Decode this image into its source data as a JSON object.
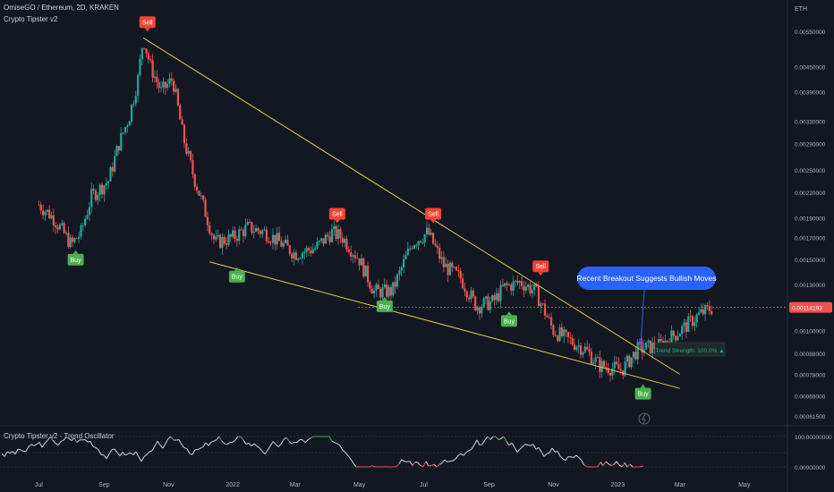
{
  "header": {
    "title": "OmiseGO / Ethereum, 2D, KRAKEN",
    "indicator": "Crypto Tipster v2",
    "currency": "ETH"
  },
  "oscillator": {
    "title": "Crypto Tipster v2 - Trend Oscillator",
    "axis_top": "100.00000000",
    "axis_bottom": "0.00000000"
  },
  "colors": {
    "background": "#131722",
    "up": "#26a69a",
    "down": "#ef5350",
    "trendline": "#e6c84a",
    "buy": "#4caf50",
    "sell": "#f44336",
    "callout": "#2962ff"
  },
  "chart_data": {
    "type": "candlestick",
    "symbol": "OmiseGO / Ethereum",
    "interval": "2D",
    "exchange": "KRAKEN",
    "y_scale": "log",
    "ylim": [
      0.0006,
      0.0057
    ],
    "y_ticks": [
      "0.00550000",
      "0.00450000",
      "0.00390000",
      "0.00330000",
      "0.00290000",
      "0.00250000",
      "0.00220000",
      "0.00190000",
      "0.00170000",
      "0.00150000",
      "0.00130000",
      "0.00100000",
      "0.00088000",
      "0.00078000",
      "0.00069000",
      "0.00061500"
    ],
    "x_ticks": [
      "Jul",
      "Sep",
      "Nov",
      "2022",
      "Mar",
      "May",
      "Jul",
      "Sep",
      "Nov",
      "2023",
      "Mar",
      "May"
    ],
    "last_price": "0.00114193",
    "price_path": [
      [
        "2021-07-01",
        0.00205
      ],
      [
        "2021-07-15",
        0.0019
      ],
      [
        "2021-08-01",
        0.00163
      ],
      [
        "2021-08-10",
        0.00175
      ],
      [
        "2021-08-20",
        0.00215
      ],
      [
        "2021-09-05",
        0.00235
      ],
      [
        "2021-09-15",
        0.0029
      ],
      [
        "2021-09-25",
        0.0034
      ],
      [
        "2021-10-03",
        0.0042
      ],
      [
        "2021-10-08",
        0.0053
      ],
      [
        "2021-10-15",
        0.0045
      ],
      [
        "2021-10-25",
        0.0039
      ],
      [
        "2021-11-05",
        0.0042
      ],
      [
        "2021-11-15",
        0.003
      ],
      [
        "2021-11-25",
        0.0024
      ],
      [
        "2021-12-05",
        0.002
      ],
      [
        "2021-12-15",
        0.00165
      ],
      [
        "2022-01-01",
        0.0017
      ],
      [
        "2022-01-15",
        0.0018
      ],
      [
        "2022-02-01",
        0.00175
      ],
      [
        "2022-02-15",
        0.00165
      ],
      [
        "2022-03-01",
        0.00155
      ],
      [
        "2022-03-20",
        0.0016
      ],
      [
        "2022-04-05",
        0.00175
      ],
      [
        "2022-04-15",
        0.0017
      ],
      [
        "2022-05-01",
        0.0015
      ],
      [
        "2022-05-15",
        0.00125
      ],
      [
        "2022-06-01",
        0.00125
      ],
      [
        "2022-06-20",
        0.00165
      ],
      [
        "2022-07-05",
        0.00175
      ],
      [
        "2022-07-20",
        0.00145
      ],
      [
        "2022-08-05",
        0.00135
      ],
      [
        "2022-08-20",
        0.00115
      ],
      [
        "2022-09-05",
        0.00118
      ],
      [
        "2022-09-15",
        0.00128
      ],
      [
        "2022-10-01",
        0.00132
      ],
      [
        "2022-10-15",
        0.00125
      ],
      [
        "2022-11-01",
        0.001
      ],
      [
        "2022-11-15",
        0.00095
      ],
      [
        "2022-12-01",
        0.0009
      ],
      [
        "2022-12-15",
        0.00082
      ],
      [
        "2023-01-05",
        0.0008
      ],
      [
        "2023-01-20",
        0.0009
      ],
      [
        "2023-02-10",
        0.00092
      ],
      [
        "2023-03-01",
        0.001
      ],
      [
        "2023-03-20",
        0.0011
      ],
      [
        "2023-04-01",
        0.00114
      ]
    ],
    "trendlines": [
      {
        "name": "upper",
        "points": [
          [
            "2021-10-08",
            0.0053
          ],
          [
            "2023-03-01",
            0.00078
          ]
        ]
      },
      {
        "name": "lower",
        "points": [
          [
            "2021-12-10",
            0.00148
          ],
          [
            "2023-03-01",
            0.00072
          ]
        ]
      }
    ],
    "signals": [
      {
        "type": "Sell",
        "date": "2021-10-12",
        "price": 0.0053
      },
      {
        "type": "Buy",
        "date": "2021-08-05",
        "price": 0.00163
      },
      {
        "type": "Buy",
        "date": "2022-01-05",
        "price": 0.00148
      },
      {
        "type": "Sell",
        "date": "2022-04-10",
        "price": 0.00178
      },
      {
        "type": "Buy",
        "date": "2022-05-25",
        "price": 0.00125
      },
      {
        "type": "Sell",
        "date": "2022-07-10",
        "price": 0.00178
      },
      {
        "type": "Buy",
        "date": "2022-09-20",
        "price": 0.00115
      },
      {
        "type": "Sell",
        "date": "2022-10-20",
        "price": 0.00132
      },
      {
        "type": "Buy",
        "date": "2023-01-25",
        "price": 0.00076
      }
    ],
    "callout": "Recent Breakout Suggests Bullish Moves",
    "trend_strength": "Trend Strength: 100.0% ▲"
  }
}
